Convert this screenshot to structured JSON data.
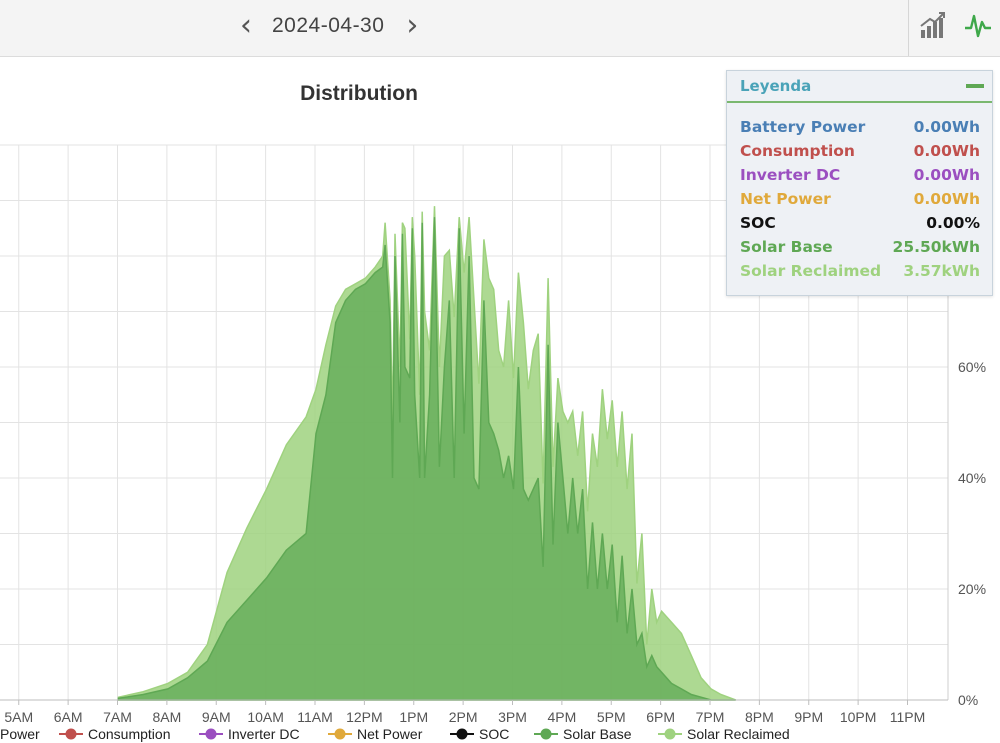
{
  "header": {
    "prev_label": "‹",
    "date": "2024-04-30",
    "next_label": "›",
    "icons": [
      "bar-chart-icon",
      "line-chart-icon"
    ]
  },
  "legend_panel": {
    "title": "Leyenda",
    "items": [
      {
        "name": "Battery Power",
        "value": "0.00Wh",
        "color": "#4a7fb5"
      },
      {
        "name": "Consumption",
        "value": "0.00Wh",
        "color": "#c0504d"
      },
      {
        "name": "Inverter DC",
        "value": "0.00Wh",
        "color": "#9b4fc0"
      },
      {
        "name": "Net Power",
        "value": "0.00Wh",
        "color": "#e0a93b"
      },
      {
        "name": "SOC",
        "value": "0.00%",
        "color": "#111111"
      },
      {
        "name": "Solar Base",
        "value": "25.50kWh",
        "color": "#5fa854"
      },
      {
        "name": "Solar Reclaimed",
        "value": "3.57kWh",
        "color": "#9fd27f"
      }
    ]
  },
  "bottom_legend": [
    {
      "label": "Power",
      "color": "#4a7fb5",
      "marker": false
    },
    {
      "label": "Consumption",
      "color": "#c0504d",
      "marker": true
    },
    {
      "label": "Inverter DC",
      "color": "#9b4fc0",
      "marker": true
    },
    {
      "label": "Net Power",
      "color": "#e0a93b",
      "marker": true
    },
    {
      "label": "SOC",
      "color": "#111111",
      "marker": true
    },
    {
      "label": "Solar Base",
      "color": "#5fa854",
      "marker": true
    },
    {
      "label": "Solar Reclaimed",
      "color": "#9fd27f",
      "marker": true
    }
  ],
  "chart_data": {
    "type": "area",
    "title": "Distribution",
    "x_ticks": [
      "5AM",
      "6AM",
      "7AM",
      "8AM",
      "9AM",
      "10AM",
      "11AM",
      "12PM",
      "1PM",
      "2PM",
      "3PM",
      "4PM",
      "5PM",
      "6PM",
      "7PM",
      "8PM",
      "9PM",
      "10PM",
      "11PM"
    ],
    "x_tick_hours": [
      5,
      6,
      7,
      8,
      9,
      10,
      11,
      12,
      13,
      14,
      15,
      16,
      17,
      18,
      19,
      20,
      21,
      22,
      23
    ],
    "xlim_hours": [
      4.6,
      23.8
    ],
    "y2_ticks": [
      "0%",
      "20%",
      "40%",
      "60%"
    ],
    "y2_values": [
      0,
      20,
      40,
      60
    ],
    "y2lim": [
      0,
      100
    ],
    "grid": true,
    "series": [
      {
        "name": "Solar Reclaimed",
        "color": "#9fd27f",
        "x": [
          7.0,
          7.5,
          8.0,
          8.4,
          8.8,
          9.2,
          9.6,
          10.0,
          10.4,
          10.8,
          11.0,
          11.2,
          11.4,
          11.6,
          11.8,
          12.0,
          12.2,
          12.35,
          12.4,
          12.5,
          12.55,
          12.6,
          12.7,
          12.75,
          12.8,
          12.9,
          12.95,
          13.0,
          13.1,
          13.15,
          13.2,
          13.3,
          13.4,
          13.5,
          13.6,
          13.7,
          13.8,
          13.9,
          14.0,
          14.1,
          14.2,
          14.3,
          14.4,
          14.5,
          14.6,
          14.7,
          14.8,
          14.9,
          15.0,
          15.1,
          15.2,
          15.3,
          15.4,
          15.5,
          15.6,
          15.7,
          15.8,
          15.9,
          16.0,
          16.1,
          16.2,
          16.3,
          16.4,
          16.5,
          16.6,
          16.7,
          16.8,
          16.9,
          17.0,
          17.1,
          17.2,
          17.3,
          17.4,
          17.5,
          17.6,
          17.7,
          17.8,
          17.9,
          18.0,
          18.2,
          18.4,
          18.6,
          18.8,
          19.0,
          19.2,
          19.5
        ],
        "values": [
          0.5,
          1.5,
          3,
          5,
          10,
          23,
          31,
          38,
          46,
          51,
          56,
          64,
          71,
          74,
          75,
          76,
          78,
          80,
          86,
          72,
          50,
          84,
          60,
          86,
          85,
          65,
          87,
          80,
          55,
          88,
          70,
          63,
          89,
          60,
          80,
          81,
          69,
          87,
          77,
          87,
          72,
          57,
          83,
          76,
          74,
          63,
          60,
          72,
          58,
          77,
          68,
          56,
          63,
          66,
          39,
          76,
          42,
          58,
          52,
          50,
          52,
          44,
          52,
          34,
          48,
          42,
          56,
          47,
          54,
          42,
          52,
          38,
          48,
          21,
          30,
          10,
          20,
          14,
          16,
          14,
          12,
          8,
          4,
          2,
          1,
          0
        ],
        "note_unit": "percent of right axis"
      },
      {
        "name": "Solar Base",
        "color": "#5fa854",
        "x": [
          7.0,
          7.5,
          8.0,
          8.4,
          8.8,
          9.2,
          9.6,
          10.0,
          10.4,
          10.8,
          11.0,
          11.2,
          11.4,
          11.6,
          11.8,
          12.0,
          12.2,
          12.35,
          12.4,
          12.5,
          12.55,
          12.6,
          12.7,
          12.75,
          12.8,
          12.9,
          12.95,
          13.0,
          13.1,
          13.15,
          13.2,
          13.3,
          13.4,
          13.5,
          13.6,
          13.7,
          13.8,
          13.9,
          14.0,
          14.1,
          14.2,
          14.3,
          14.4,
          14.5,
          14.6,
          14.7,
          14.8,
          14.9,
          15.0,
          15.1,
          15.2,
          15.3,
          15.4,
          15.5,
          15.6,
          15.7,
          15.8,
          15.9,
          16.0,
          16.1,
          16.2,
          16.3,
          16.4,
          16.5,
          16.6,
          16.7,
          16.8,
          16.9,
          17.0,
          17.1,
          17.2,
          17.3,
          17.4,
          17.5,
          17.6,
          17.7,
          17.8,
          17.9,
          18.0,
          18.2,
          18.4,
          18.6,
          18.8,
          19.0,
          19.2,
          19.5
        ],
        "values": [
          0.3,
          1.0,
          2,
          4,
          7,
          14,
          18,
          22,
          27,
          30,
          48,
          55,
          68,
          72,
          74,
          75,
          77,
          78,
          82,
          68,
          40,
          80,
          50,
          84,
          60,
          58,
          85,
          55,
          40,
          86,
          40,
          55,
          87,
          42,
          60,
          72,
          40,
          85,
          48,
          80,
          40,
          38,
          72,
          50,
          48,
          45,
          40,
          44,
          38,
          60,
          38,
          36,
          38,
          40,
          24,
          64,
          28,
          50,
          40,
          30,
          40,
          30,
          38,
          20,
          32,
          20,
          30,
          20,
          28,
          14,
          26,
          12,
          20,
          10,
          12,
          6,
          8,
          6,
          5,
          3,
          2,
          1,
          0.5,
          0,
          0,
          0
        ],
        "note_unit": "percent of right axis"
      }
    ]
  }
}
